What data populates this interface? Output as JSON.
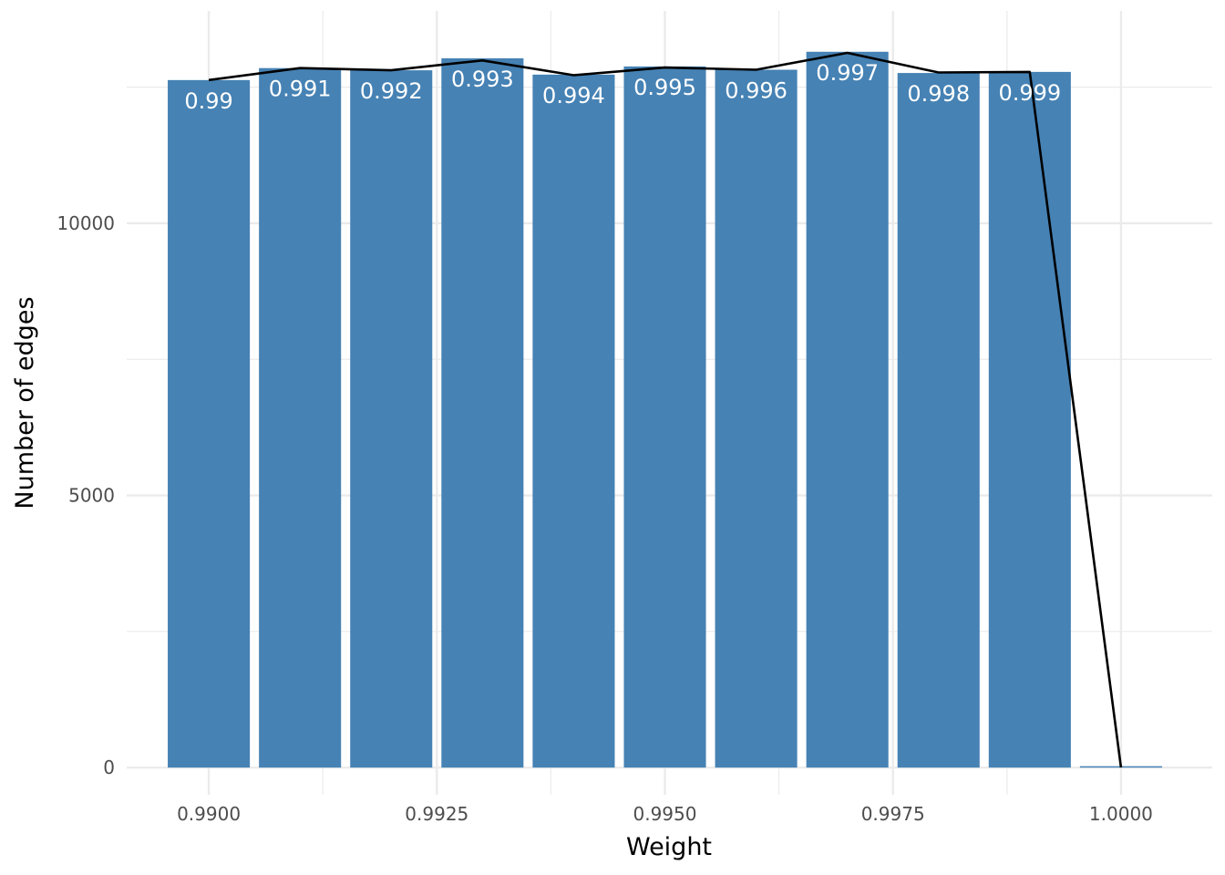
{
  "chart_data": {
    "type": "bar",
    "title": "",
    "xlabel": "Weight",
    "ylabel": "Number of edges",
    "x": [
      0.99,
      0.991,
      0.992,
      0.993,
      0.994,
      0.995,
      0.996,
      0.997,
      0.998,
      0.999,
      1.0
    ],
    "values": [
      12630,
      12850,
      12810,
      13030,
      12730,
      12880,
      12820,
      13150,
      12760,
      12780,
      20
    ],
    "bar_labels": [
      "0.99",
      "0.991",
      "0.992",
      "0.993",
      "0.994",
      "0.995",
      "0.996",
      "0.997",
      "0.998",
      "0.999",
      ""
    ],
    "line_values": [
      12630,
      12850,
      12810,
      12990,
      12720,
      12860,
      12820,
      13130,
      12770,
      12780,
      0
    ],
    "xlim": [
      0.9891,
      1.001
    ],
    "ylim": [
      -500,
      13900
    ],
    "x_ticks": [
      0.99,
      0.9925,
      0.995,
      0.9975,
      1.0
    ],
    "x_tick_labels": [
      "0.9900",
      "0.9925",
      "0.9950",
      "0.9975",
      "1.0000"
    ],
    "y_ticks": [
      0,
      5000,
      10000
    ],
    "y_tick_labels": [
      "0",
      "5000",
      "10000"
    ],
    "grid": true,
    "legend": "none",
    "bar_color": "#4682b4",
    "line_color": "#000000",
    "label_color": "#ffffff",
    "grid_color": "#ebebeb"
  }
}
